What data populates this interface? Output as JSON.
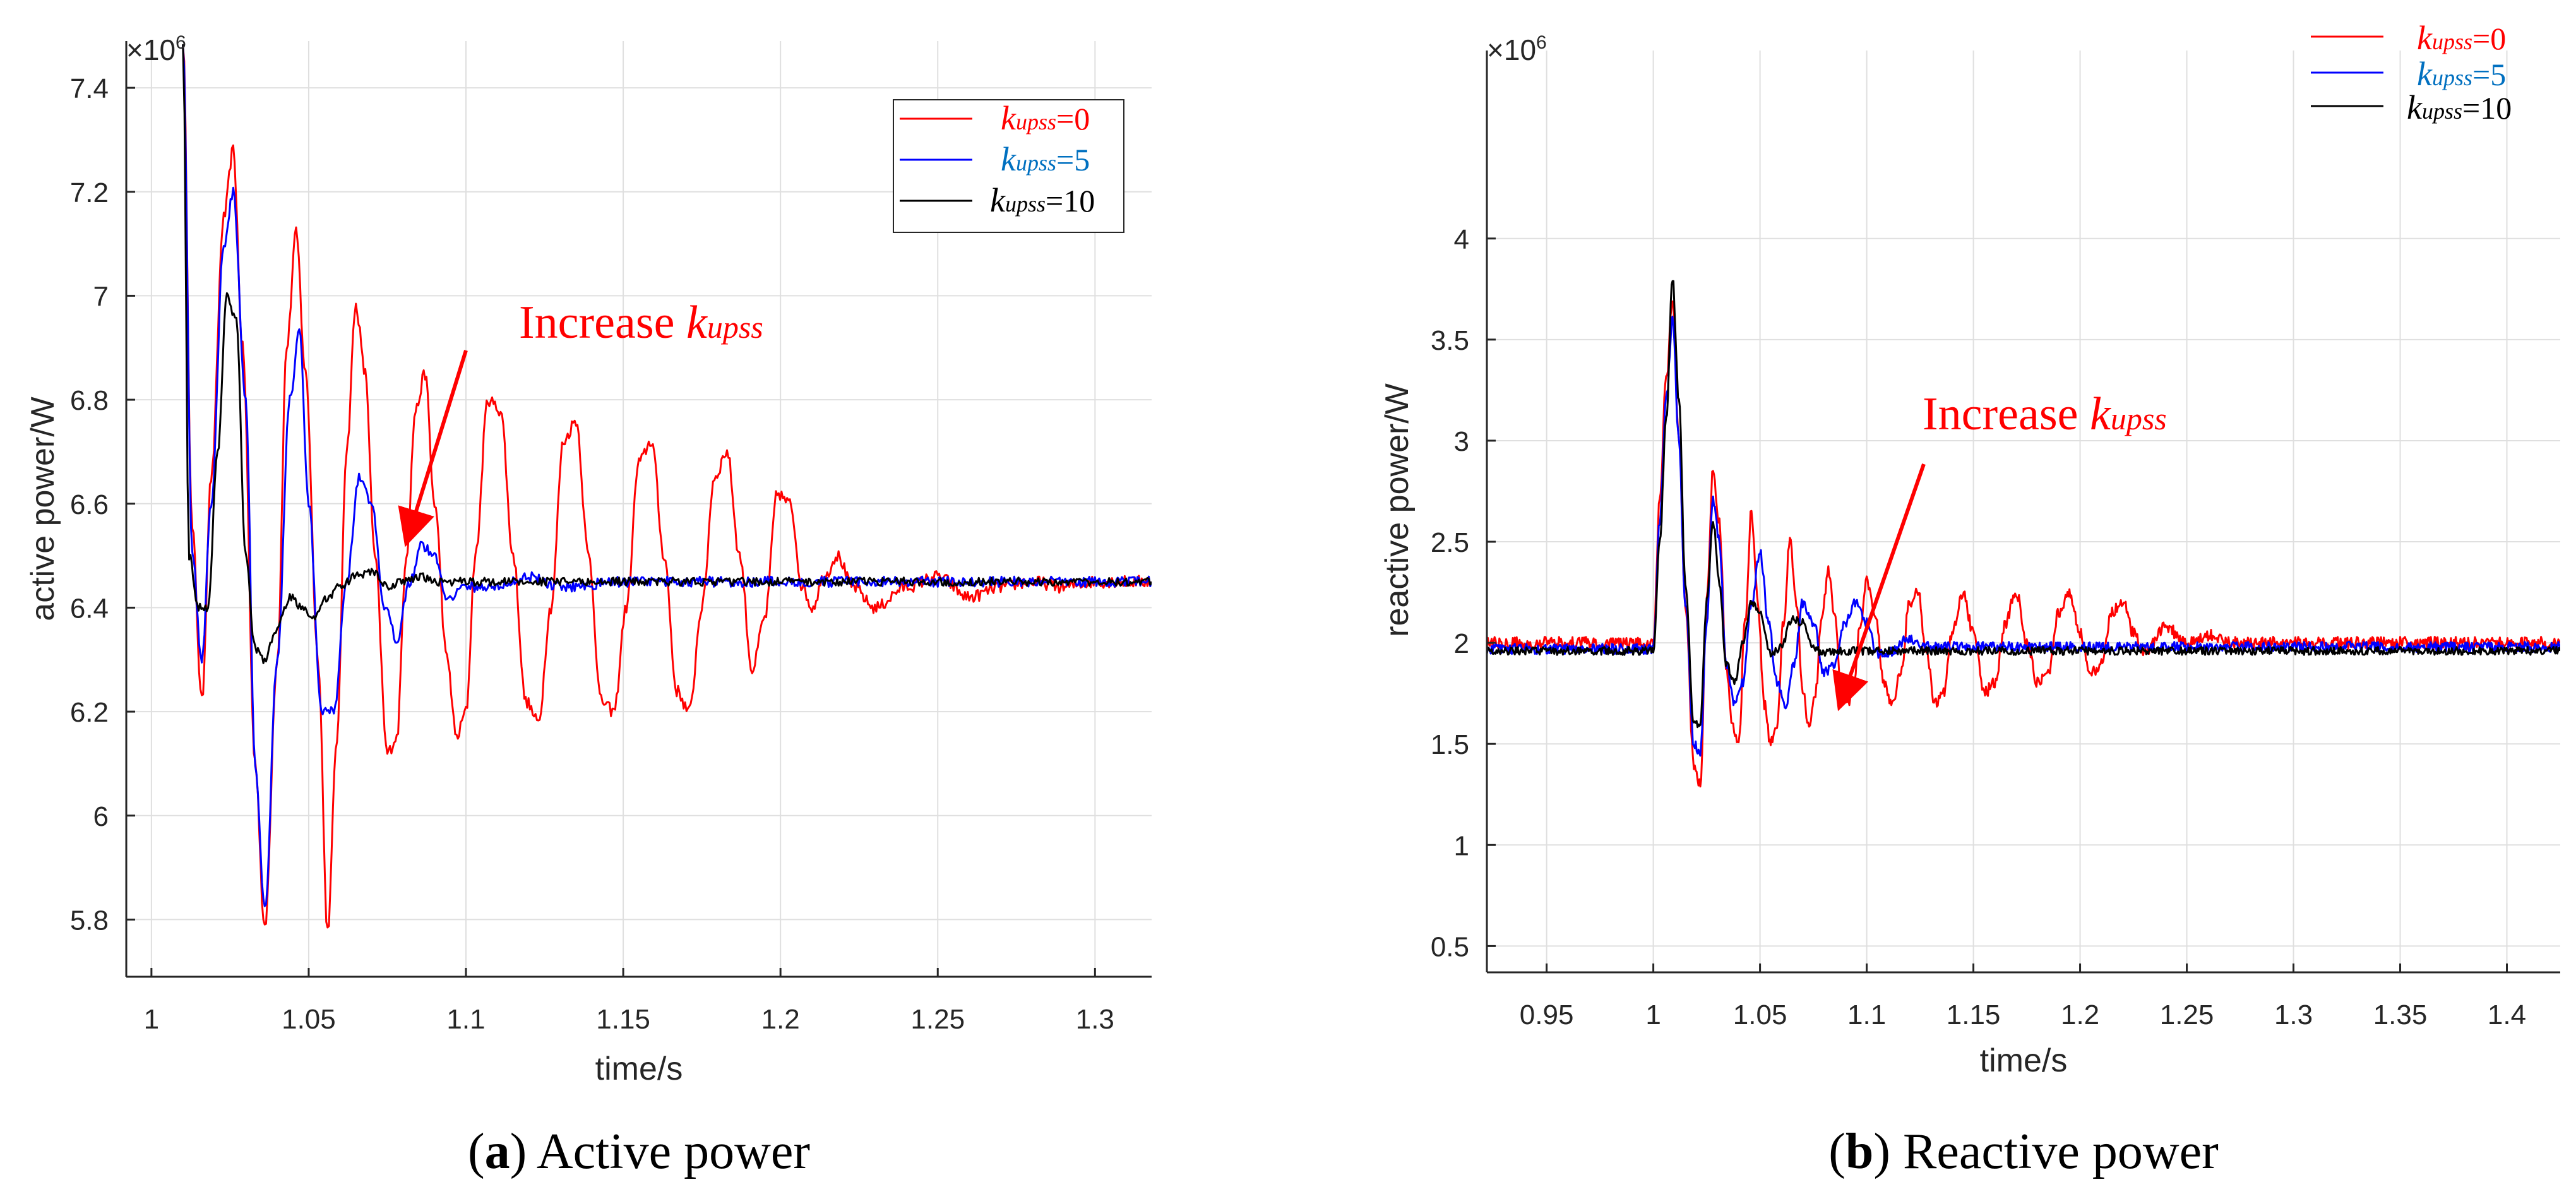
{
  "chart_data": [
    {
      "type": "line",
      "panel_label": "a",
      "caption_text": " Active power",
      "xlabel": "time/s",
      "ylabel": "active power/W",
      "exponent_label": "×10",
      "exponent_power": "6",
      "xlim": [
        0.992,
        1.318
      ],
      "ylim": [
        5.69,
        7.49
      ],
      "xticks": [
        1,
        1.05,
        1.1,
        1.15,
        1.2,
        1.25,
        1.3
      ],
      "xtick_labels": [
        "1",
        "1.05",
        "1.1",
        "1.15",
        "1.2",
        "1.25",
        "1.3"
      ],
      "yticks": [
        5.8,
        6.0,
        6.2,
        6.4,
        6.6,
        6.8,
        7.0,
        7.2,
        7.4
      ],
      "ytick_labels": [
        "5.8",
        "6",
        "6.2",
        "6.4",
        "6.6",
        "6.8",
        "7",
        "7.2",
        "7.4"
      ],
      "grid": true,
      "legend_position": "top-right",
      "annotation": {
        "prefix": "Increase ",
        "italic": "kupss",
        "color": "#ff0000"
      },
      "series": [
        {
          "name": "kupss=0",
          "legend_italic": "kupss",
          "legend_value": "=0",
          "color": "#ff0000",
          "legend_text_color": "#ff0000",
          "noise": 0.012,
          "x": [
            1.01,
            1.013,
            1.016,
            1.019,
            1.023,
            1.026,
            1.029,
            1.033,
            1.036,
            1.04,
            1.043,
            1.046,
            1.049,
            1.053,
            1.056,
            1.059,
            1.062,
            1.065,
            1.068,
            1.071,
            1.075,
            1.078,
            1.081,
            1.084,
            1.087,
            1.09,
            1.094,
            1.097,
            1.1,
            1.103,
            1.107,
            1.111,
            1.115,
            1.119,
            1.123,
            1.127,
            1.131,
            1.135,
            1.139,
            1.143,
            1.147,
            1.151,
            1.155,
            1.159,
            1.163,
            1.167,
            1.171,
            1.175,
            1.179,
            1.183,
            1.187,
            1.191,
            1.195,
            1.199,
            1.203,
            1.207,
            1.21,
            1.214,
            1.218,
            1.223,
            1.23,
            1.24,
            1.25,
            1.26,
            1.27,
            1.28,
            1.29,
            1.3,
            1.318
          ],
          "y": [
            7.49,
            6.55,
            6.22,
            6.65,
            7.15,
            7.28,
            6.9,
            6.1,
            5.78,
            6.3,
            6.9,
            7.12,
            6.85,
            6.3,
            5.78,
            6.15,
            6.7,
            6.98,
            6.85,
            6.5,
            6.12,
            6.15,
            6.5,
            6.78,
            6.85,
            6.6,
            6.3,
            6.15,
            6.2,
            6.5,
            6.8,
            6.78,
            6.5,
            6.22,
            6.18,
            6.4,
            6.72,
            6.76,
            6.5,
            6.22,
            6.2,
            6.4,
            6.68,
            6.72,
            6.5,
            6.24,
            6.2,
            6.4,
            6.65,
            6.7,
            6.5,
            6.28,
            6.38,
            6.62,
            6.6,
            6.44,
            6.4,
            6.46,
            6.5,
            6.44,
            6.4,
            6.44,
            6.46,
            6.42,
            6.44,
            6.45,
            6.44,
            6.45,
            6.45
          ]
        },
        {
          "name": "kupss=5",
          "legend_italic": "kupss",
          "legend_value": "=5",
          "color": "#0000ff",
          "legend_text_color": "#0070c0",
          "noise": 0.01,
          "x": [
            1.01,
            1.013,
            1.016,
            1.019,
            1.023,
            1.026,
            1.03,
            1.033,
            1.036,
            1.04,
            1.044,
            1.047,
            1.05,
            1.054,
            1.058,
            1.062,
            1.066,
            1.07,
            1.074,
            1.078,
            1.082,
            1.086,
            1.09,
            1.094,
            1.1,
            1.11,
            1.12,
            1.13,
            1.15,
            1.2,
            1.25,
            1.3,
            1.318
          ],
          "y": [
            7.49,
            6.5,
            6.3,
            6.6,
            7.1,
            7.2,
            6.8,
            6.1,
            5.82,
            6.3,
            6.8,
            6.93,
            6.6,
            6.2,
            6.2,
            6.45,
            6.65,
            6.6,
            6.4,
            6.34,
            6.45,
            6.52,
            6.5,
            6.42,
            6.44,
            6.44,
            6.46,
            6.44,
            6.45,
            6.45,
            6.45,
            6.45,
            6.45
          ]
        },
        {
          "name": "kupss=10",
          "legend_italic": "kupss",
          "legend_value": "=10",
          "color": "#000000",
          "legend_text_color": "#000000",
          "noise": 0.008,
          "x": [
            1.01,
            1.012,
            1.015,
            1.018,
            1.021,
            1.024,
            1.027,
            1.03,
            1.033,
            1.036,
            1.04,
            1.044,
            1.048,
            1.052,
            1.056,
            1.06,
            1.065,
            1.07,
            1.075,
            1.08,
            1.085,
            1.09,
            1.1,
            1.12,
            1.15,
            1.2,
            1.25,
            1.3,
            1.318
          ],
          "y": [
            7.49,
            6.5,
            6.4,
            6.4,
            6.7,
            7.0,
            6.95,
            6.5,
            6.32,
            6.3,
            6.36,
            6.42,
            6.4,
            6.38,
            6.42,
            6.44,
            6.46,
            6.47,
            6.44,
            6.45,
            6.46,
            6.45,
            6.45,
            6.45,
            6.45,
            6.45,
            6.45,
            6.45,
            6.45
          ]
        }
      ]
    },
    {
      "type": "line",
      "panel_label": "b",
      "caption_text": " Reactive power",
      "xlabel": "time/s",
      "ylabel": "reactive power/W",
      "exponent_label": "×10",
      "exponent_power": "6",
      "xlim": [
        0.922,
        1.425
      ],
      "ylim": [
        0.37,
        4.93
      ],
      "xticks": [
        0.95,
        1,
        1.05,
        1.1,
        1.15,
        1.2,
        1.25,
        1.3,
        1.35,
        1.4
      ],
      "xtick_labels": [
        "0.95",
        "1",
        "1.05",
        "1.1",
        "1.15",
        "1.2",
        "1.25",
        "1.3",
        "1.35",
        "1.4"
      ],
      "yticks": [
        0.5,
        1,
        1.5,
        2,
        2.5,
        3,
        3.5,
        4
      ],
      "ytick_labels": [
        "0.5",
        "1",
        "1.5",
        "2",
        "2.5",
        "3",
        "3.5",
        "4"
      ],
      "grid": true,
      "legend_position": "top-right",
      "annotation": {
        "prefix": "Increase ",
        "italic": "kupss",
        "color": "#ff0000"
      },
      "series": [
        {
          "name": "kupss=0",
          "legend_italic": "kupss",
          "legend_value": "=0",
          "color": "#ff0000",
          "legend_text_color": "#ff0000",
          "noise": 0.03,
          "x": [
            0.922,
            1.0,
            1.003,
            1.006,
            1.009,
            1.012,
            1.015,
            1.019,
            1.022,
            1.025,
            1.028,
            1.031,
            1.034,
            1.037,
            1.04,
            1.043,
            1.046,
            1.049,
            1.052,
            1.055,
            1.058,
            1.061,
            1.064,
            1.067,
            1.07,
            1.073,
            1.076,
            1.079,
            1.082,
            1.085,
            1.088,
            1.091,
            1.094,
            1.097,
            1.1,
            1.104,
            1.108,
            1.112,
            1.116,
            1.12,
            1.124,
            1.128,
            1.132,
            1.136,
            1.14,
            1.145,
            1.15,
            1.155,
            1.16,
            1.165,
            1.17,
            1.175,
            1.18,
            1.185,
            1.19,
            1.195,
            1.2,
            1.205,
            1.21,
            1.215,
            1.22,
            1.225,
            1.23,
            1.24,
            1.25,
            1.26,
            1.27,
            1.28,
            1.3,
            1.35,
            1.425
          ],
          "y": [
            2.0,
            2.0,
            2.7,
            3.3,
            3.7,
            3.0,
            2.2,
            1.4,
            1.3,
            2.2,
            2.85,
            2.6,
            1.9,
            1.6,
            1.5,
            2.1,
            2.65,
            2.2,
            1.7,
            1.5,
            1.6,
            2.1,
            2.5,
            2.2,
            1.75,
            1.6,
            1.75,
            2.15,
            2.35,
            2.15,
            1.8,
            1.7,
            1.8,
            2.1,
            2.3,
            2.15,
            1.8,
            1.7,
            1.85,
            2.2,
            2.25,
            1.95,
            1.7,
            1.75,
            2.05,
            2.25,
            2.05,
            1.75,
            1.8,
            2.1,
            2.25,
            2.0,
            1.8,
            1.85,
            2.15,
            2.25,
            2.05,
            1.85,
            1.9,
            2.15,
            2.2,
            2.05,
            1.95,
            2.08,
            2.0,
            2.04,
            2.0,
            2.0,
            2.0,
            2.0,
            2.0
          ]
        },
        {
          "name": "kupss=5",
          "legend_italic": "kupss",
          "legend_value": "=5",
          "color": "#0000ff",
          "legend_text_color": "#0070c0",
          "noise": 0.025,
          "x": [
            0.922,
            1.0,
            1.003,
            1.006,
            1.009,
            1.012,
            1.015,
            1.019,
            1.022,
            1.025,
            1.028,
            1.031,
            1.034,
            1.038,
            1.042,
            1.046,
            1.05,
            1.054,
            1.058,
            1.062,
            1.066,
            1.07,
            1.075,
            1.08,
            1.085,
            1.09,
            1.095,
            1.1,
            1.105,
            1.11,
            1.12,
            1.13,
            1.15,
            1.2,
            1.3,
            1.425
          ],
          "y": [
            1.97,
            1.97,
            2.6,
            3.2,
            3.6,
            3.0,
            2.2,
            1.5,
            1.45,
            2.1,
            2.7,
            2.5,
            1.9,
            1.7,
            1.8,
            2.2,
            2.45,
            2.1,
            1.8,
            1.7,
            1.9,
            2.2,
            2.1,
            1.85,
            1.9,
            2.1,
            2.2,
            2.1,
            1.95,
            1.95,
            2.02,
            1.98,
            1.98,
            1.98,
            1.98,
            1.98
          ]
        },
        {
          "name": "kupss=10",
          "legend_italic": "kupss",
          "legend_value": "=10",
          "color": "#000000",
          "legend_text_color": "#000000",
          "noise": 0.02,
          "x": [
            0.922,
            1.0,
            1.003,
            1.006,
            1.009,
            1.012,
            1.015,
            1.019,
            1.022,
            1.025,
            1.028,
            1.031,
            1.034,
            1.038,
            1.042,
            1.046,
            1.05,
            1.055,
            1.06,
            1.065,
            1.07,
            1.075,
            1.08,
            1.09,
            1.1,
            1.12,
            1.15,
            1.2,
            1.3,
            1.425
          ],
          "y": [
            1.96,
            1.96,
            2.5,
            3.1,
            3.8,
            3.2,
            2.3,
            1.6,
            1.6,
            2.2,
            2.6,
            2.3,
            1.9,
            1.8,
            2.0,
            2.2,
            2.15,
            1.95,
            1.98,
            2.12,
            2.1,
            1.97,
            1.95,
            1.96,
            1.96,
            1.96,
            1.96,
            1.96,
            1.96,
            1.96
          ]
        }
      ]
    }
  ]
}
